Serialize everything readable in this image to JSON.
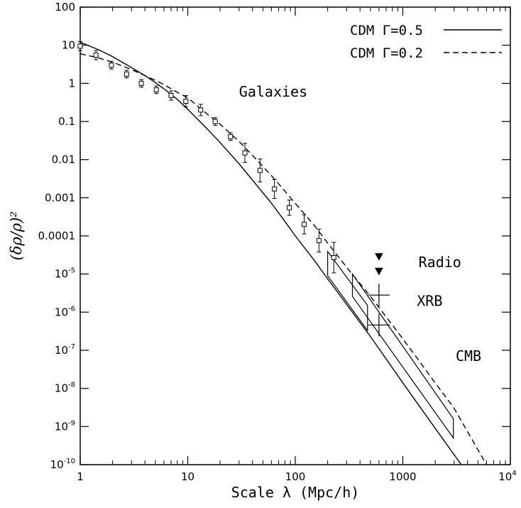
{
  "chart_data": {
    "type": "scatter",
    "xlabel": "Scale λ (Mpc/h)",
    "ylabel": "(δρ/ρ)²",
    "xscale": "log",
    "yscale": "log",
    "xlim": [
      1,
      10000
    ],
    "ylim": [
      1e-10,
      100
    ],
    "xticks": [
      {
        "v": 1,
        "label": "1"
      },
      {
        "v": 10,
        "label": "10"
      },
      {
        "v": 100,
        "label": "100"
      },
      {
        "v": 1000,
        "label": "1000"
      },
      {
        "v": 10000,
        "label": "10",
        "sup": "4"
      }
    ],
    "yticks": [
      {
        "v": 100,
        "label": "100"
      },
      {
        "v": 10,
        "label": "10"
      },
      {
        "v": 1,
        "label": "1"
      },
      {
        "v": 0.1,
        "label": "0.1"
      },
      {
        "v": 0.01,
        "label": "0.01"
      },
      {
        "v": 0.001,
        "label": "0.001"
      },
      {
        "v": 0.0001,
        "label": "0.0001"
      },
      {
        "v": 1e-05,
        "label": "10",
        "sup": "-5"
      },
      {
        "v": 1e-06,
        "label": "10",
        "sup": "-6"
      },
      {
        "v": 1e-07,
        "label": "10",
        "sup": "-7"
      },
      {
        "v": 1e-08,
        "label": "10",
        "sup": "-8"
      },
      {
        "v": 1e-09,
        "label": "10",
        "sup": "-9"
      },
      {
        "v": 1e-10,
        "label": "10",
        "sup": "-10"
      }
    ],
    "legend": {
      "position": "top-right",
      "entries": [
        {
          "label": "CDM Γ=0.5",
          "style": "solid"
        },
        {
          "label": "CDM Γ=0.2",
          "style": "dashed"
        }
      ]
    },
    "series": [
      {
        "label": "CDM Γ=0.5",
        "style": "solid",
        "x": [
          1,
          1.5,
          2,
          3,
          4,
          5,
          6,
          8,
          10,
          15,
          20,
          30,
          40,
          60,
          80,
          100,
          150,
          200,
          300,
          500,
          1000,
          2000,
          3500
        ],
        "y": [
          12,
          7.5,
          5,
          2.6,
          1.6,
          1.05,
          0.72,
          0.38,
          0.21,
          0.066,
          0.028,
          0.0078,
          0.0029,
          0.00072,
          0.00024,
          0.0001,
          2.3e-05,
          7.5e-06,
          1.6e-06,
          2.3e-07,
          1.4e-08,
          9e-10,
          1e-10
        ]
      },
      {
        "label": "CDM Γ=0.2",
        "style": "dashed",
        "x": [
          1,
          1.5,
          2,
          3,
          4,
          5,
          6,
          8,
          10,
          15,
          20,
          30,
          40,
          60,
          80,
          100,
          150,
          200,
          300,
          500,
          1000,
          2000,
          3000,
          6000
        ],
        "y": [
          6,
          4.6,
          3.6,
          2.3,
          1.6,
          1.2,
          0.93,
          0.58,
          0.42,
          0.16,
          0.085,
          0.03,
          0.013,
          0.0038,
          0.0015,
          0.00071,
          0.00019,
          6.5e-05,
          1.5e-05,
          2.6e-06,
          2e-07,
          1.4e-08,
          3e-09,
          1e-10
        ]
      }
    ],
    "galaxy_points": [
      {
        "x": 1.0,
        "y": 9.5,
        "err": 0.12
      },
      {
        "x": 1.4,
        "y": 5.5,
        "err": 0.12
      },
      {
        "x": 1.95,
        "y": 3.0,
        "err": 0.1
      },
      {
        "x": 2.7,
        "y": 1.75,
        "err": 0.1
      },
      {
        "x": 3.7,
        "y": 1.0,
        "err": 0.1
      },
      {
        "x": 5.1,
        "y": 0.68,
        "err": 0.1
      },
      {
        "x": 7.0,
        "y": 0.48,
        "err": 0.12
      },
      {
        "x": 9.6,
        "y": 0.34,
        "err": 0.15
      },
      {
        "x": 13.2,
        "y": 0.2,
        "err": 0.15
      },
      {
        "x": 18,
        "y": 0.1,
        "err": 0.1
      },
      {
        "x": 25,
        "y": 0.04,
        "err": 0.1
      },
      {
        "x": 34,
        "y": 0.015,
        "err": 0.25
      },
      {
        "x": 47,
        "y": 0.0052,
        "err": 0.3
      },
      {
        "x": 64,
        "y": 0.0017,
        "err": 0.25
      },
      {
        "x": 88,
        "y": 0.00055,
        "err": 0.2
      },
      {
        "x": 121,
        "y": 0.0002,
        "err": 0.25
      },
      {
        "x": 166,
        "y": 7.5e-05,
        "err": 0.3
      },
      {
        "x": 228,
        "y": 2.7e-05,
        "err": 0.4
      }
    ],
    "radio_points": [
      {
        "x": 600,
        "y": 2.9e-05
      },
      {
        "x": 600,
        "y": 1.2e-05
      }
    ],
    "xrb_points": [
      {
        "x": 600,
        "y": 2.8e-06,
        "xerr": 0.1,
        "yerr": 0.3
      },
      {
        "x": 600,
        "y": 4.6e-07,
        "xerr": 0.1,
        "yerr": 0.3
      }
    ],
    "cmb_boxes": [
      {
        "points": [
          [
            200,
            3.9e-05
          ],
          [
            200,
            9e-06
          ],
          [
            470,
            3.3e-07
          ],
          [
            470,
            1.5e-06
          ]
        ]
      },
      {
        "points": [
          [
            340,
            1e-05
          ],
          [
            340,
            2.6e-06
          ],
          [
            2950,
            5e-10
          ],
          [
            2950,
            1.6e-09
          ]
        ]
      }
    ],
    "annotations": [
      {
        "text": "Galaxies",
        "x": 30,
        "y": 0.45
      },
      {
        "text": "Radio",
        "x": 1400,
        "y": 1.5e-05
      },
      {
        "text": "XRB",
        "x": 1350,
        "y": 1.45e-06
      },
      {
        "text": "CMB",
        "x": 3100,
        "y": 5.2e-08
      }
    ]
  }
}
